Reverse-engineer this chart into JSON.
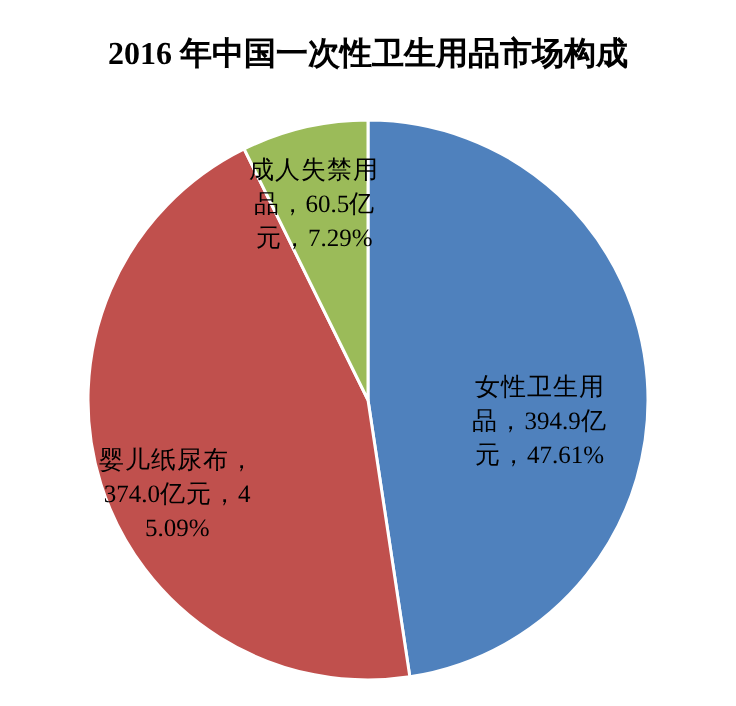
{
  "chart_data": {
    "type": "pie",
    "title": "2016 年中国一次性卫生用品市场构成",
    "categories": [
      "女性卫生用品",
      "婴儿纸尿布",
      "成人失禁用品"
    ],
    "values": [
      394.9,
      374.0,
      60.5
    ],
    "value_labels": [
      "，394.9亿元，47.61%",
      "，374.0亿元，45.09%",
      "，60.5亿元，7.29%"
    ],
    "colors": [
      "#4f81bd",
      "#c0504d",
      "#9bbb59"
    ]
  }
}
